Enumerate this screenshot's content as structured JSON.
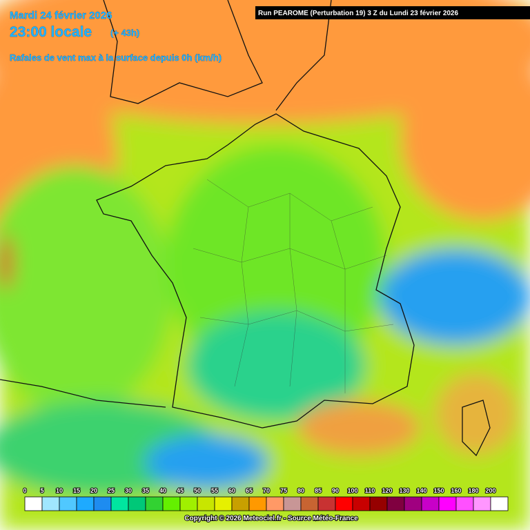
{
  "header": {
    "date": "Mardi 24 février 2026",
    "time": "23:00 locale",
    "lead": "(+ 43h)",
    "parameter": "Rafales de vent max à la surface depuis 0h (km/h)",
    "run": "Run PEAROME (Perturbation 19) 3 Z du Lundi 23 février 2026"
  },
  "legend": {
    "items": [
      {
        "value": 0,
        "color": "#ffffff"
      },
      {
        "value": 5,
        "color": "#a0e6ff"
      },
      {
        "value": 10,
        "color": "#50c8ff"
      },
      {
        "value": 15,
        "color": "#1eaaff"
      },
      {
        "value": 20,
        "color": "#1e8cf0"
      },
      {
        "value": 25,
        "color": "#00e6a0"
      },
      {
        "value": 30,
        "color": "#00c878"
      },
      {
        "value": 35,
        "color": "#32d232"
      },
      {
        "value": 40,
        "color": "#64f000"
      },
      {
        "value": 45,
        "color": "#a0f000"
      },
      {
        "value": 50,
        "color": "#c8e600"
      },
      {
        "value": 55,
        "color": "#e6f000"
      },
      {
        "value": 60,
        "color": "#c8a000"
      },
      {
        "value": 65,
        "color": "#ff9900"
      },
      {
        "value": 70,
        "color": "#ff9966"
      },
      {
        "value": 75,
        "color": "#c89696"
      },
      {
        "value": 80,
        "color": "#c86432"
      },
      {
        "value": 85,
        "color": "#c83232"
      },
      {
        "value": 90,
        "color": "#ff0000"
      },
      {
        "value": 100,
        "color": "#c80000"
      },
      {
        "value": 110,
        "color": "#960000"
      },
      {
        "value": 120,
        "color": "#800040"
      },
      {
        "value": 130,
        "color": "#a00080"
      },
      {
        "value": 140,
        "color": "#c800c8"
      },
      {
        "value": 150,
        "color": "#ff00ff"
      },
      {
        "value": 160,
        "color": "#ff50ff"
      },
      {
        "value": 180,
        "color": "#ff96ff"
      },
      {
        "value": 200,
        "color": "#ffffff"
      }
    ]
  },
  "footer": {
    "copyright": "Copyright © 2026 Meteociel.fr - Source Météo-France"
  }
}
